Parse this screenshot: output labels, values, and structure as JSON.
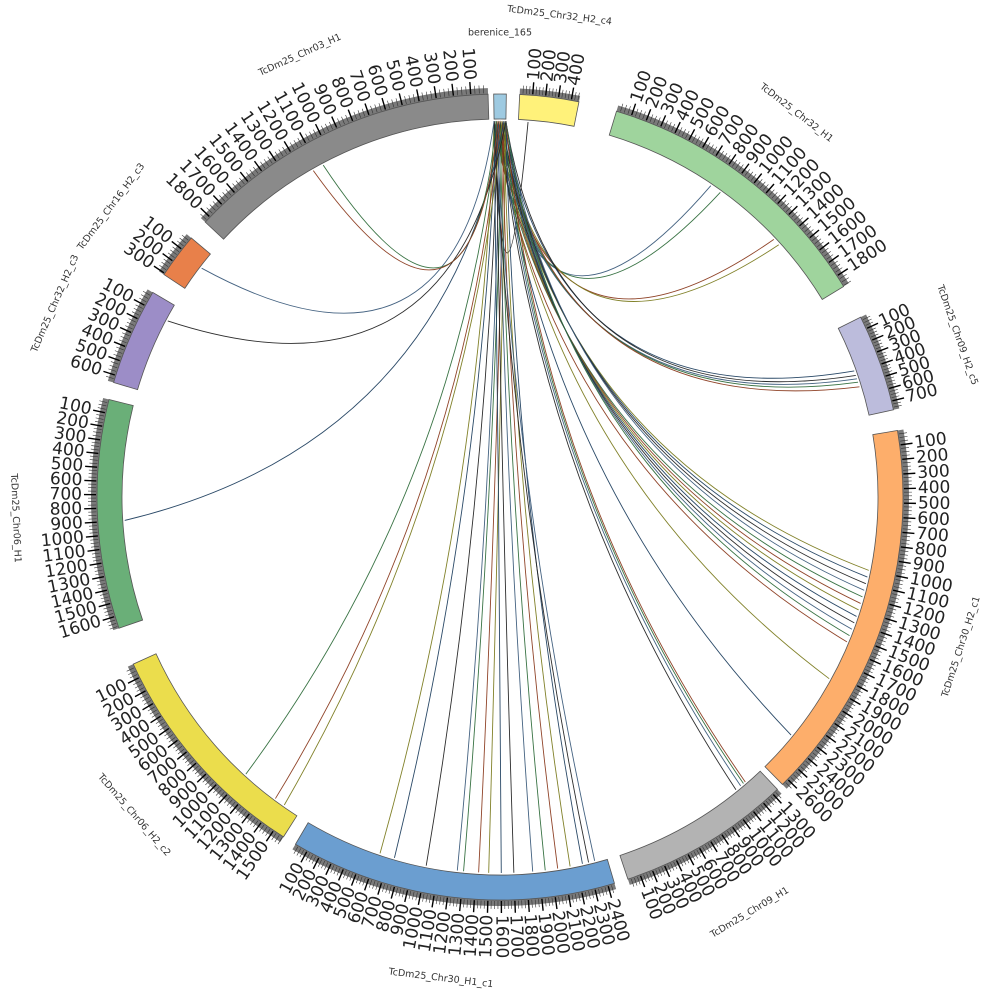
{
  "diagram": {
    "type": "circos",
    "hub": "berenice_165",
    "segments": [
      {
        "id": "hub",
        "name": "berenice_165",
        "length": 12,
        "color": "#9ecae1",
        "ticks": []
      },
      {
        "id": "chr32h2c4",
        "name": "TcDm25_Chr32_H2_c4",
        "length": 460,
        "color": "#fff27a",
        "ticks": [
          100,
          200,
          300,
          400
        ]
      },
      {
        "id": "chr32h1",
        "name": "TcDm25_Chr32_H1",
        "length": 1880,
        "color": "#9fd49d",
        "ticks": [
          100,
          200,
          300,
          400,
          500,
          600,
          700,
          800,
          900,
          1000,
          1100,
          1200,
          1300,
          1400,
          1500,
          1600,
          1700,
          1800
        ]
      },
      {
        "id": "chr09h2c5",
        "name": "TcDm25_Chr09_H2_c5",
        "length": 770,
        "color": "#bcbcdc",
        "ticks": [
          100,
          200,
          300,
          400,
          500,
          600,
          700
        ]
      },
      {
        "id": "chr30h2c1",
        "name": "TcDm25_Chr30_H2_c1",
        "length": 2650,
        "color": "#fdae6b",
        "ticks": [
          100,
          200,
          300,
          400,
          500,
          600,
          700,
          800,
          900,
          1000,
          1100,
          1200,
          1300,
          1400,
          1500,
          1600,
          1700,
          1800,
          1900,
          2000,
          2100,
          2200,
          2300,
          2400,
          2500,
          2600
        ]
      },
      {
        "id": "chr09h1",
        "name": "TcDm25_Chr09_H1",
        "length": 1350,
        "color": "#b3b3b3",
        "ticks": [
          100,
          200,
          300,
          400,
          500,
          600,
          700,
          800,
          900,
          1000,
          1100,
          1200,
          1300
        ]
      },
      {
        "id": "chr30h1c1",
        "name": "TcDm25_Chr30_H1_c1",
        "length": 2450,
        "color": "#6b9ed0",
        "ticks": [
          100,
          200,
          300,
          400,
          500,
          600,
          700,
          800,
          900,
          1000,
          1100,
          1200,
          1300,
          1400,
          1500,
          1600,
          1700,
          1800,
          1900,
          2000,
          2100,
          2200,
          2300,
          2400
        ]
      },
      {
        "id": "chr06h2c2",
        "name": "TcDm25_Chr06_H2_c2",
        "length": 1580,
        "color": "#ebdd4c",
        "ticks": [
          100,
          200,
          300,
          400,
          500,
          600,
          700,
          800,
          900,
          1000,
          1100,
          1200,
          1300,
          1400,
          1500
        ]
      },
      {
        "id": "chr06h1",
        "name": "TcDm25_Chr06_H1",
        "length": 1690,
        "color": "#6aaf78",
        "ticks": [
          100,
          200,
          300,
          400,
          500,
          600,
          700,
          800,
          900,
          1000,
          1100,
          1200,
          1300,
          1400,
          1500,
          1600
        ]
      },
      {
        "id": "chr32h2c3",
        "name": "TcDm25_Chr32_H2_c3",
        "length": 650,
        "color": "#9c8dc7",
        "ticks": [
          100,
          200,
          300,
          400,
          500,
          600
        ]
      },
      {
        "id": "chr16h2c3",
        "name": "TcDm25_Chr16_H2_c3",
        "length": 310,
        "color": "#e8804a",
        "ticks": [
          100,
          200,
          300
        ]
      },
      {
        "id": "chr03h1",
        "name": "TcDm25_Chr03_H1",
        "length": 1840,
        "color": "#8a8a8a",
        "ticks": [
          100,
          200,
          300,
          400,
          500,
          600,
          700,
          800,
          900,
          1000,
          1100,
          1200,
          1300,
          1400,
          1500,
          1600,
          1700,
          1800
        ]
      }
    ],
    "links": [
      {
        "target": "chr32h2c4",
        "pos": 80
      },
      {
        "target": "chr32h1",
        "pos": 780
      },
      {
        "target": "chr32h1",
        "pos": 860
      },
      {
        "target": "chr32h1",
        "pos": 1350
      },
      {
        "target": "chr32h1",
        "pos": 1400
      },
      {
        "target": "chr09h2c5",
        "pos": 380
      },
      {
        "target": "chr09h2c5",
        "pos": 420
      },
      {
        "target": "chr09h2c5",
        "pos": 450
      },
      {
        "target": "chr09h2c5",
        "pos": 480
      },
      {
        "target": "chr09h2c5",
        "pos": 520
      },
      {
        "target": "chr30h2c1",
        "pos": 1000
      },
      {
        "target": "chr30h2c1",
        "pos": 1050
      },
      {
        "target": "chr30h2c1",
        "pos": 1100
      },
      {
        "target": "chr30h2c1",
        "pos": 1150
      },
      {
        "target": "chr30h2c1",
        "pos": 1200
      },
      {
        "target": "chr30h2c1",
        "pos": 1250
      },
      {
        "target": "chr30h2c1",
        "pos": 1300
      },
      {
        "target": "chr30h2c1",
        "pos": 1350
      },
      {
        "target": "chr30h2c1",
        "pos": 1400
      },
      {
        "target": "chr30h2c1",
        "pos": 1450
      },
      {
        "target": "chr30h2c1",
        "pos": 1500
      },
      {
        "target": "chr30h2c1",
        "pos": 1550
      },
      {
        "target": "chr30h2c1",
        "pos": 1850
      },
      {
        "target": "chr30h2c1",
        "pos": 2350
      },
      {
        "target": "chr09h1",
        "pos": 1100
      },
      {
        "target": "chr09h1",
        "pos": 1150
      },
      {
        "target": "chr09h1",
        "pos": 1180
      },
      {
        "target": "chr09h1",
        "pos": 1200
      },
      {
        "target": "chr30h1c1",
        "pos": 620
      },
      {
        "target": "chr30h1c1",
        "pos": 740
      },
      {
        "target": "chr30h1c1",
        "pos": 1000
      },
      {
        "target": "chr30h1c1",
        "pos": 1250
      },
      {
        "target": "chr30h1c1",
        "pos": 1300
      },
      {
        "target": "chr30h1c1",
        "pos": 1420
      },
      {
        "target": "chr30h1c1",
        "pos": 1500
      },
      {
        "target": "chr30h1c1",
        "pos": 1600
      },
      {
        "target": "chr30h1c1",
        "pos": 1700
      },
      {
        "target": "chr30h1c1",
        "pos": 1850
      },
      {
        "target": "chr30h1c1",
        "pos": 1950
      },
      {
        "target": "chr30h1c1",
        "pos": 2050
      },
      {
        "target": "chr30h1c1",
        "pos": 2150
      },
      {
        "target": "chr30h1c1",
        "pos": 2250
      },
      {
        "target": "chr30h1c1",
        "pos": 2300
      },
      {
        "target": "chr30h1c1",
        "pos": 2350
      },
      {
        "target": "chr06h2c2",
        "pos": 1100
      },
      {
        "target": "chr06h2c2",
        "pos": 1380
      },
      {
        "target": "chr06h2c2",
        "pos": 1460
      },
      {
        "target": "chr06h1",
        "pos": 900
      },
      {
        "target": "chr32h2c3",
        "pos": 120
      },
      {
        "target": "chr16h2c3",
        "pos": 120
      },
      {
        "target": "chr03h1",
        "pos": 1070
      },
      {
        "target": "chr03h1",
        "pos": 1140
      }
    ],
    "link_colors": [
      "#222222",
      "#3a5a7a",
      "#2e6b3a",
      "#8a3a1e",
      "#7a7a1e",
      "#1f3f5f"
    ]
  }
}
